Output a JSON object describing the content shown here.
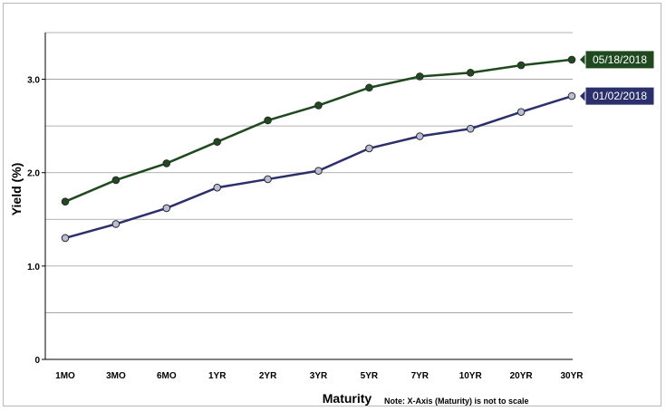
{
  "chart_data": {
    "type": "line",
    "categories": [
      "1MO",
      "3MO",
      "6MO",
      "1YR",
      "2YR",
      "3YR",
      "5YR",
      "7YR",
      "10YR",
      "20YR",
      "30YR"
    ],
    "series": [
      {
        "name": "05/18/2018",
        "color": "#1f4a1f",
        "values": [
          1.69,
          1.92,
          2.1,
          2.33,
          2.56,
          2.72,
          2.91,
          3.03,
          3.07,
          3.15,
          3.21
        ]
      },
      {
        "name": "01/02/2018",
        "color": "#2b2f6b",
        "values": [
          1.3,
          1.45,
          1.62,
          1.84,
          1.93,
          2.02,
          2.26,
          2.39,
          2.47,
          2.65,
          2.82
        ]
      }
    ],
    "ylabel": "Yield (%)",
    "xlabel": "Maturity",
    "note": "Note: X-Axis (Maturity) is not to scale",
    "ylim": [
      0,
      3.5
    ],
    "yticks": [
      "0",
      "1.0",
      "2.0",
      "3.0"
    ],
    "grid": true,
    "legend": "right-end labels"
  }
}
